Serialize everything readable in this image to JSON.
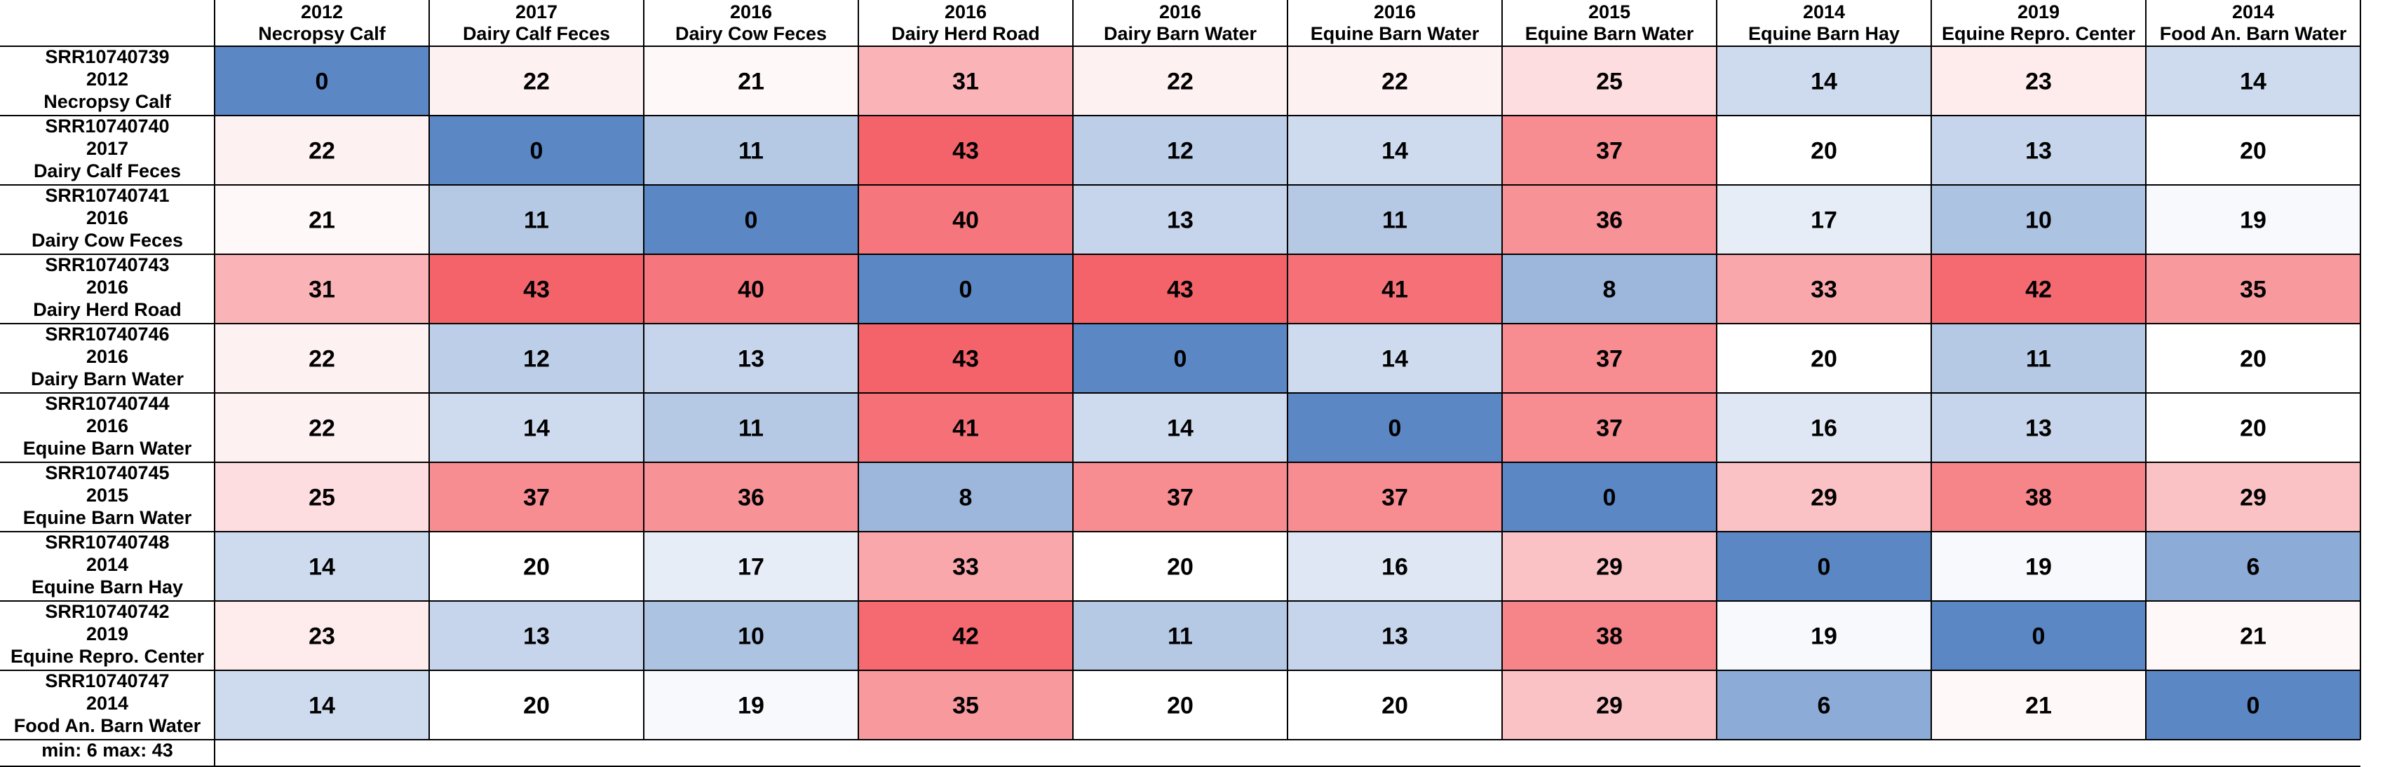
{
  "chart_data": {
    "type": "heatmap",
    "column_headers": [
      [
        "2012",
        "Necropsy Calf"
      ],
      [
        "2017",
        "Dairy Calf Feces"
      ],
      [
        "2016",
        "Dairy Cow Feces"
      ],
      [
        "2016",
        "Dairy Herd Road"
      ],
      [
        "2016",
        "Dairy Barn  Water"
      ],
      [
        "2016",
        "Equine Barn  Water"
      ],
      [
        "2015",
        "Equine Barn Water"
      ],
      [
        "2014",
        "Equine Barn Hay"
      ],
      [
        "2019",
        "Equine Repro. Center"
      ],
      [
        "2014",
        "Food An. Barn Water"
      ]
    ],
    "row_headers": [
      [
        "SRR10740739",
        "2012",
        "Necropsy Calf"
      ],
      [
        "SRR10740740",
        "2017",
        "Dairy Calf Feces"
      ],
      [
        "SRR10740741",
        "2016",
        "Dairy Cow Feces"
      ],
      [
        "SRR10740743",
        "2016",
        "Dairy Herd Road"
      ],
      [
        "SRR10740746",
        "2016",
        "Dairy Barn  Water"
      ],
      [
        "SRR10740744",
        "2016",
        "Equine Barn  Water"
      ],
      [
        "SRR10740745",
        "2015",
        "Equine Barn Water"
      ],
      [
        "SRR10740748",
        "2014",
        "Equine Barn Hay"
      ],
      [
        "SRR10740742",
        "2019",
        "Equine Repro. Center"
      ],
      [
        "SRR10740747",
        "2014",
        "Food An. Barn Water"
      ]
    ],
    "values": [
      [
        0,
        22,
        21,
        31,
        22,
        22,
        25,
        14,
        23,
        14
      ],
      [
        22,
        0,
        11,
        43,
        12,
        14,
        37,
        20,
        13,
        20
      ],
      [
        21,
        11,
        0,
        40,
        13,
        11,
        36,
        17,
        10,
        19
      ],
      [
        31,
        43,
        40,
        0,
        43,
        41,
        8,
        33,
        42,
        35
      ],
      [
        22,
        12,
        13,
        43,
        0,
        14,
        37,
        20,
        11,
        20
      ],
      [
        22,
        14,
        11,
        41,
        14,
        0,
        37,
        16,
        13,
        20
      ],
      [
        25,
        37,
        36,
        8,
        37,
        37,
        0,
        29,
        38,
        29
      ],
      [
        14,
        20,
        17,
        33,
        20,
        16,
        29,
        0,
        19,
        6
      ],
      [
        23,
        13,
        10,
        42,
        11,
        13,
        38,
        19,
        0,
        21
      ],
      [
        14,
        20,
        19,
        35,
        20,
        20,
        29,
        6,
        21,
        0
      ]
    ],
    "footer": "min: 6 max: 43",
    "color_scale": {
      "low": "#5b87c5",
      "mid": "#ffffff",
      "high": "#f4636a",
      "low_value": 0,
      "mid_value": 20,
      "high_value": 43
    },
    "grid": true
  }
}
